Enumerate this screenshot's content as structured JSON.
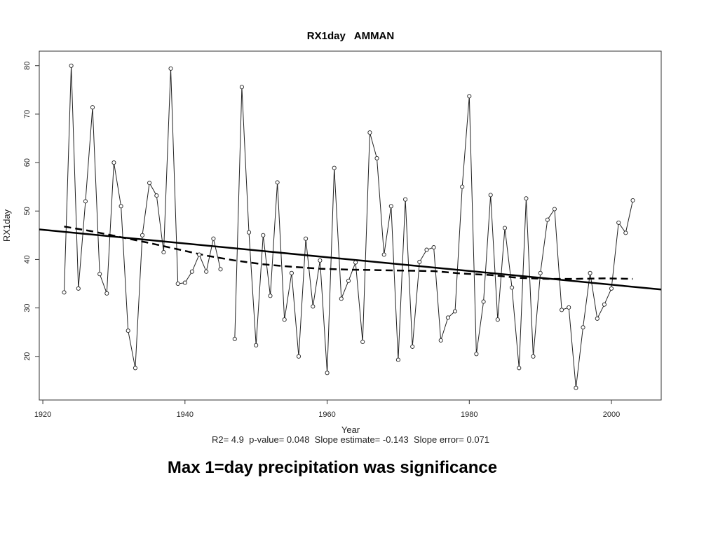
{
  "caption": "Max 1=day precipitation was significance",
  "chart_data": {
    "type": "line",
    "title": "RX1day   AMMAN",
    "xlabel": "Year",
    "ylabel": "RX1day",
    "stats": "R2= 4.9  p-value= 0.048  Slope estimate= -0.143  Slope error= 0.071",
    "xlim": [
      1919.5,
      2007
    ],
    "ylim": [
      11,
      83
    ],
    "x_ticks": [
      1920,
      1940,
      1960,
      1980,
      2000
    ],
    "y_ticks": [
      20,
      30,
      40,
      50,
      60,
      70,
      80
    ],
    "grid": false,
    "series": [
      {
        "style": "observations",
        "points": [
          [
            1923,
            33.2
          ],
          [
            1924,
            80.0
          ],
          [
            1925,
            34.0
          ],
          [
            1926,
            52.0
          ],
          [
            1927,
            71.4
          ],
          [
            1928,
            37.0
          ],
          [
            1929,
            33.0
          ],
          [
            1930,
            60.0
          ],
          [
            1931,
            51.0
          ],
          [
            1932,
            25.3
          ],
          [
            1933,
            17.6
          ],
          [
            1934,
            45.0
          ],
          [
            1935,
            55.8
          ],
          [
            1936,
            53.2
          ],
          [
            1937,
            41.5
          ],
          [
            1938,
            79.4
          ],
          [
            1939,
            35.0
          ],
          [
            1940,
            35.2
          ],
          [
            1941,
            37.5
          ],
          [
            1942,
            41.0
          ],
          [
            1943,
            37.5
          ],
          [
            1944,
            44.3
          ],
          [
            1945,
            38.0
          ],
          null,
          [
            1947,
            23.6
          ],
          [
            1948,
            75.6
          ],
          [
            1949,
            45.6
          ],
          [
            1950,
            22.3
          ],
          [
            1951,
            45.0
          ],
          [
            1952,
            32.5
          ],
          [
            1953,
            55.9
          ],
          [
            1954,
            27.6
          ],
          [
            1955,
            37.2
          ],
          [
            1956,
            20.0
          ],
          [
            1957,
            44.3
          ],
          [
            1958,
            30.3
          ],
          [
            1959,
            39.8
          ],
          [
            1960,
            16.6
          ],
          [
            1961,
            58.9
          ],
          [
            1962,
            31.9
          ],
          [
            1963,
            35.6
          ],
          [
            1964,
            39.4
          ],
          [
            1965,
            23.0
          ],
          [
            1966,
            66.2
          ],
          [
            1967,
            60.9
          ],
          [
            1968,
            41.0
          ],
          [
            1969,
            51.0
          ],
          [
            1970,
            19.3
          ],
          [
            1971,
            52.4
          ],
          [
            1972,
            22.0
          ],
          [
            1973,
            39.5
          ],
          [
            1974,
            42.0
          ],
          [
            1975,
            42.5
          ],
          [
            1976,
            23.3
          ],
          [
            1977,
            28.0
          ],
          [
            1978,
            29.3
          ],
          [
            1979,
            55.0
          ],
          [
            1980,
            73.7
          ],
          [
            1981,
            20.5
          ],
          [
            1982,
            31.3
          ],
          [
            1983,
            53.3
          ],
          [
            1984,
            27.6
          ],
          [
            1985,
            46.5
          ],
          [
            1986,
            34.2
          ],
          [
            1987,
            17.6
          ],
          [
            1988,
            52.6
          ],
          [
            1989,
            20.0
          ],
          [
            1990,
            37.2
          ],
          [
            1991,
            48.2
          ],
          [
            1992,
            50.4
          ],
          [
            1993,
            29.6
          ],
          [
            1994,
            30.1
          ],
          [
            1995,
            13.5
          ],
          [
            1996,
            26.0
          ],
          [
            1997,
            37.2
          ],
          [
            1998,
            27.8
          ],
          [
            1999,
            30.7
          ],
          [
            2000,
            34.0
          ],
          [
            2001,
            47.6
          ],
          [
            2002,
            45.5
          ],
          [
            2003,
            52.2
          ]
        ]
      },
      {
        "style": "linear-trend",
        "points": [
          [
            1919.5,
            46.2
          ],
          [
            2007,
            33.8
          ]
        ]
      },
      {
        "style": "smoothed-dashed",
        "points": [
          [
            1923,
            46.8
          ],
          [
            1927,
            45.8
          ],
          [
            1931,
            44.6
          ],
          [
            1935,
            43.4
          ],
          [
            1939,
            42.1
          ],
          [
            1943,
            40.8
          ],
          [
            1947,
            39.8
          ],
          [
            1951,
            39.0
          ],
          [
            1955,
            38.5
          ],
          [
            1959,
            38.1
          ],
          [
            1963,
            37.9
          ],
          [
            1967,
            37.8
          ],
          [
            1971,
            37.7
          ],
          [
            1975,
            37.6
          ],
          [
            1979,
            37.1
          ],
          [
            1983,
            36.8
          ],
          [
            1987,
            36.2
          ],
          [
            1991,
            36.0
          ],
          [
            1995,
            36.0
          ],
          [
            1999,
            36.1
          ],
          [
            2003,
            36.0
          ]
        ]
      }
    ]
  }
}
